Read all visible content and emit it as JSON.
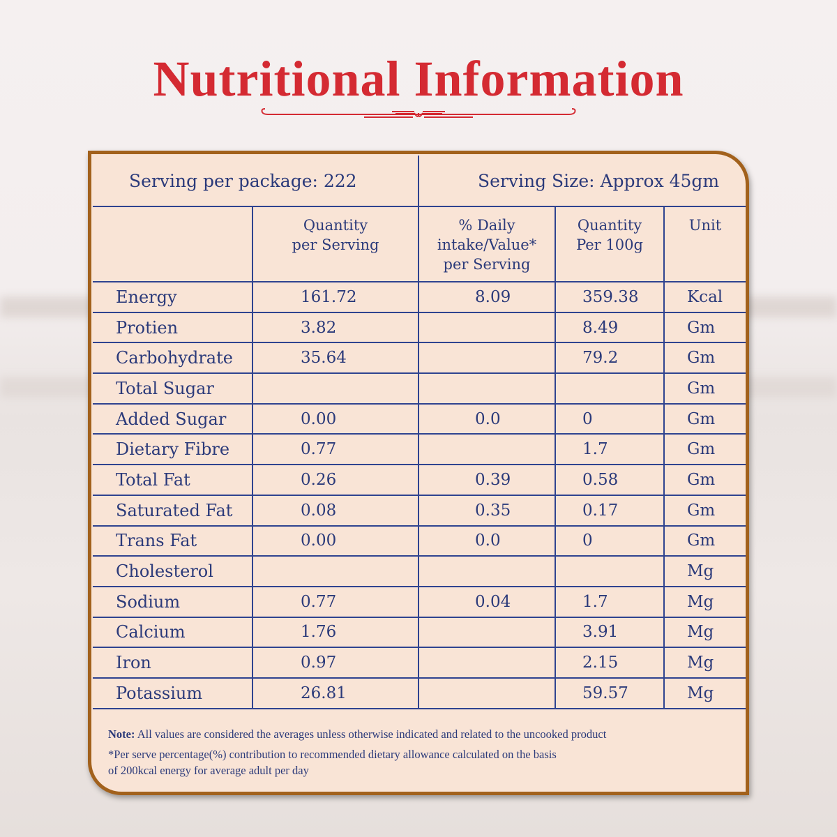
{
  "title": "Nutritional Information",
  "header": {
    "serving_per_package": "Serving per package: 222",
    "serving_size": "Serving Size: Approx 45gm"
  },
  "columns": {
    "qty_serving": [
      "Quantity",
      "per Serving"
    ],
    "daily": [
      "% Daily",
      "intake/Value*",
      "per Serving"
    ],
    "qty_100g": [
      "Quantity",
      "Per 100g"
    ],
    "unit": "Unit"
  },
  "rows": [
    {
      "name": "Energy",
      "per_serving": "161.72",
      "daily": "8.09",
      "per_100g": "359.38",
      "unit": "Kcal"
    },
    {
      "name": "Protien",
      "per_serving": "3.82",
      "daily": "",
      "per_100g": "8.49",
      "unit": "Gm"
    },
    {
      "name": "Carbohydrate",
      "per_serving": "35.64",
      "daily": "",
      "per_100g": "79.2",
      "unit": "Gm"
    },
    {
      "name": "Total Sugar",
      "per_serving": "",
      "daily": "",
      "per_100g": "",
      "unit": "Gm"
    },
    {
      "name": "Added Sugar",
      "per_serving": "0.00",
      "daily": "0.0",
      "per_100g": "0",
      "unit": "Gm"
    },
    {
      "name": "Dietary Fibre",
      "per_serving": "0.77",
      "daily": "",
      "per_100g": "1.7",
      "unit": "Gm"
    },
    {
      "name": "Total Fat",
      "per_serving": "0.26",
      "daily": "0.39",
      "per_100g": "0.58",
      "unit": "Gm"
    },
    {
      "name": "Saturated Fat",
      "per_serving": "0.08",
      "daily": "0.35",
      "per_100g": "0.17",
      "unit": "Gm"
    },
    {
      "name": "Trans Fat",
      "per_serving": "0.00",
      "daily": "0.0",
      "per_100g": "0",
      "unit": "Gm"
    },
    {
      "name": "Cholesterol",
      "per_serving": "",
      "daily": "",
      "per_100g": "",
      "unit": "Mg"
    },
    {
      "name": "Sodium",
      "per_serving": "0.77",
      "daily": "0.04",
      "per_100g": "1.7",
      "unit": "Mg"
    },
    {
      "name": "Calcium",
      "per_serving": "1.76",
      "daily": "",
      "per_100g": "3.91",
      "unit": "Mg"
    },
    {
      "name": "Iron",
      "per_serving": "0.97",
      "daily": "",
      "per_100g": "2.15",
      "unit": "Mg"
    },
    {
      "name": "Potassium",
      "per_serving": "26.81",
      "daily": "",
      "per_100g": "59.57",
      "unit": "Mg"
    }
  ],
  "note": {
    "label": "Note:",
    "text": " All values are considered the averages unless otherwise indicated and related to the uncooked product",
    "footnote1": "*Per serve percentage(%) contribution to recommended dietary allowance calculated on the basis",
    "footnote2": "of 200kcal energy for average adult per day"
  },
  "colors": {
    "title": "#d42a32",
    "text": "#2b3a7a",
    "grid": "#2f4390",
    "fill": "#f9e4d6",
    "border": "#a2611c"
  }
}
